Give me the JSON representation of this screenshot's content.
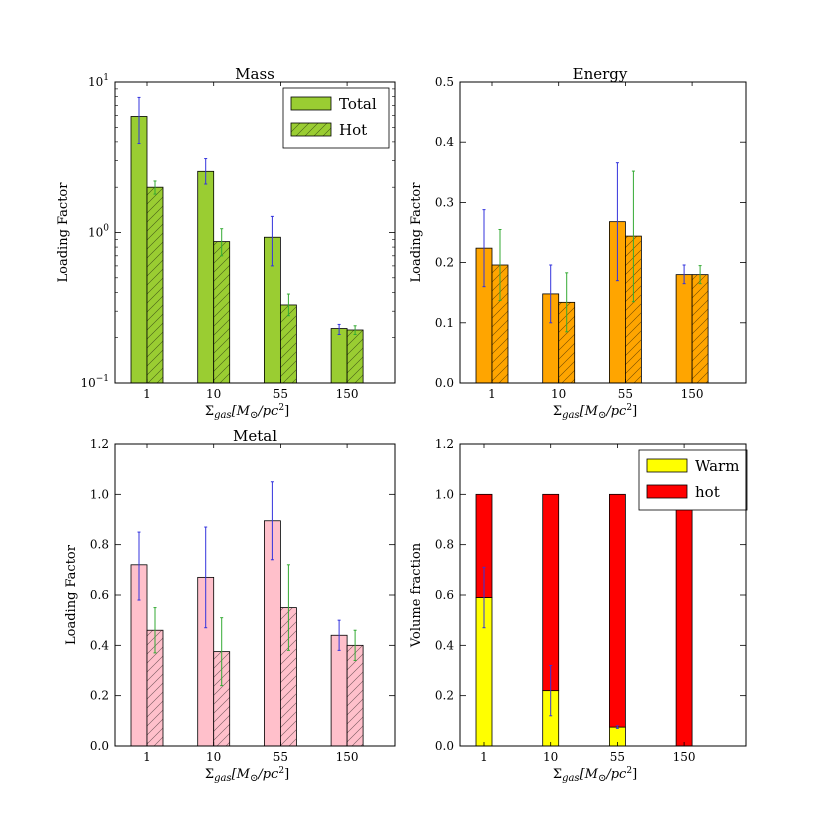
{
  "chart_data": [
    {
      "id": "mass",
      "type": "bar",
      "title": "Mass",
      "ylabel": "Loading Factor",
      "xlabel": "Σgas[M⊙/pc2]",
      "yscale": "log",
      "ylim": [
        0.1,
        10
      ],
      "yticks": [
        {
          "value": 0.1,
          "base": "10",
          "exp": "−1"
        },
        {
          "value": 1,
          "base": "10",
          "exp": "0"
        },
        {
          "value": 10,
          "base": "10",
          "exp": "1"
        }
      ],
      "categories": [
        "1",
        "10",
        "55",
        "150"
      ],
      "legend": "top-right",
      "series": [
        {
          "name": "Total",
          "color": "#9acd32",
          "hatch": false,
          "err_color": "#3333dd",
          "values": [
            5.9,
            2.55,
            0.93,
            0.23
          ],
          "err_low": [
            3.9,
            2.1,
            0.6,
            0.21
          ],
          "err_high": [
            7.9,
            3.1,
            1.28,
            0.245
          ]
        },
        {
          "name": "Hot",
          "color": "#9acd32",
          "hatch": true,
          "err_color": "#33aa33",
          "values": [
            2.0,
            0.87,
            0.33,
            0.225
          ],
          "err_low": [
            1.8,
            0.7,
            0.28,
            0.21
          ],
          "err_high": [
            2.2,
            1.06,
            0.39,
            0.24
          ]
        }
      ]
    },
    {
      "id": "energy",
      "type": "bar",
      "title": "Energy",
      "ylabel": "Loading Factor",
      "xlabel": "Σgas[M⊙/pc2]",
      "yscale": "linear",
      "ylim": [
        0,
        0.5
      ],
      "yticks": [
        0.0,
        0.1,
        0.2,
        0.3,
        0.4,
        0.5
      ],
      "categories": [
        "1",
        "10",
        "55",
        "150"
      ],
      "series": [
        {
          "name": "Total",
          "color": "#ffa500",
          "hatch": false,
          "err_color": "#3333dd",
          "values": [
            0.224,
            0.148,
            0.268,
            0.18
          ],
          "err_low": [
            0.16,
            0.1,
            0.17,
            0.165
          ],
          "err_high": [
            0.288,
            0.196,
            0.366,
            0.196
          ]
        },
        {
          "name": "Hot",
          "color": "#ffa500",
          "hatch": true,
          "err_color": "#33aa33",
          "values": [
            0.196,
            0.134,
            0.244,
            0.18
          ],
          "err_low": [
            0.137,
            0.085,
            0.135,
            0.165
          ],
          "err_high": [
            0.255,
            0.183,
            0.352,
            0.195
          ]
        }
      ]
    },
    {
      "id": "metal",
      "type": "bar",
      "title": "Metal",
      "ylabel": "Loading Factor",
      "xlabel": "Σgas[M⊙/pc2]",
      "yscale": "linear",
      "ylim": [
        0,
        1.2
      ],
      "yticks": [
        0.0,
        0.2,
        0.4,
        0.6,
        0.8,
        1.0,
        1.2
      ],
      "categories": [
        "1",
        "10",
        "55",
        "150"
      ],
      "series": [
        {
          "name": "Total",
          "color": "#ffc0cb",
          "hatch": false,
          "err_color": "#3333dd",
          "values": [
            0.72,
            0.67,
            0.895,
            0.44
          ],
          "err_low": [
            0.58,
            0.47,
            0.74,
            0.38
          ],
          "err_high": [
            0.85,
            0.87,
            1.05,
            0.5
          ]
        },
        {
          "name": "Hot",
          "color": "#ffc0cb",
          "hatch": true,
          "err_color": "#33aa33",
          "values": [
            0.46,
            0.375,
            0.55,
            0.4
          ],
          "err_low": [
            0.37,
            0.24,
            0.38,
            0.34
          ],
          "err_high": [
            0.55,
            0.51,
            0.72,
            0.46
          ]
        }
      ]
    },
    {
      "id": "volume",
      "type": "bar",
      "stacked": true,
      "title": "",
      "ylabel": "Volume fraction",
      "xlabel": "Σgas[M⊙/pc2]",
      "yscale": "linear",
      "ylim": [
        0,
        1.2
      ],
      "yticks": [
        0.0,
        0.2,
        0.4,
        0.6,
        0.8,
        1.0,
        1.2
      ],
      "categories": [
        "1",
        "10",
        "55",
        "150"
      ],
      "legend": "top-right",
      "series": [
        {
          "name": "Warm",
          "color": "#ffff00",
          "err_color": "#3333dd",
          "values": [
            0.59,
            0.22,
            0.075,
            0.0
          ],
          "err_low": [
            0.47,
            0.12,
            0.07,
            null
          ],
          "err_high": [
            0.71,
            0.32,
            0.08,
            null
          ]
        },
        {
          "name": "hot",
          "color": "#ff0000",
          "values": [
            0.41,
            0.78,
            0.925,
            1.0
          ]
        }
      ]
    }
  ]
}
